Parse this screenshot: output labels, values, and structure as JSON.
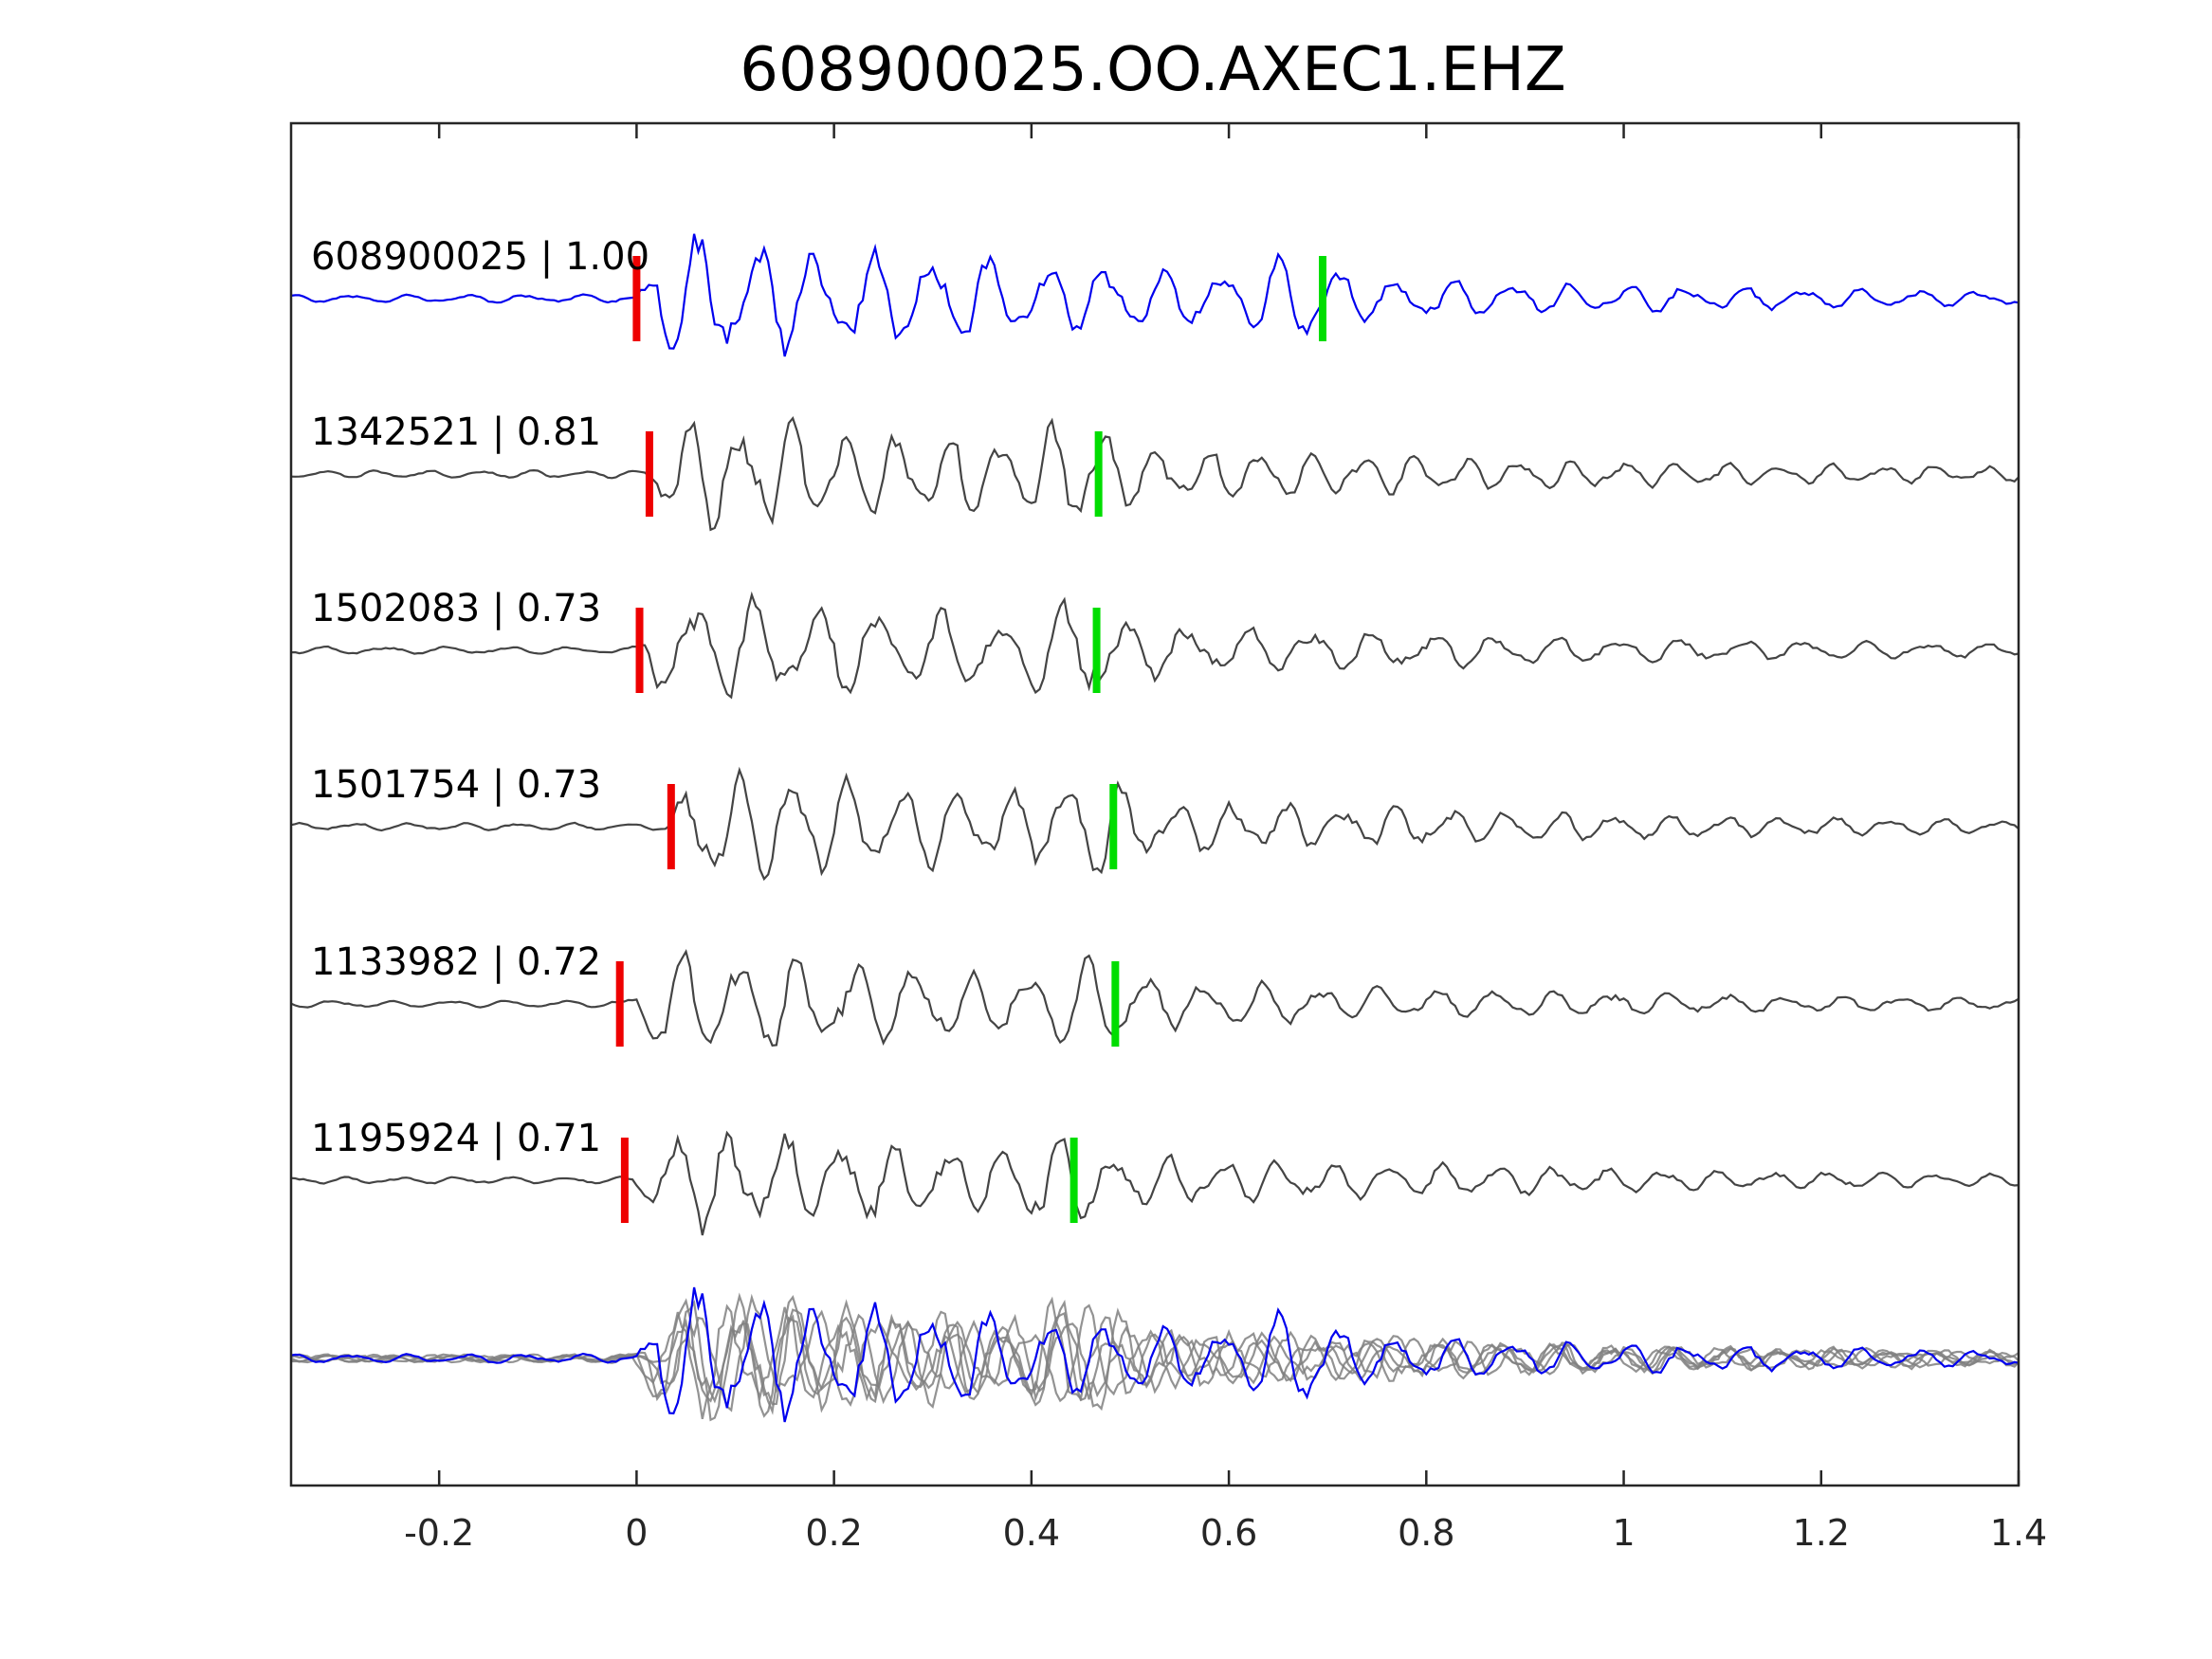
{
  "chart_data": {
    "type": "line",
    "title": "608900025.OO.AXEC1.EHZ",
    "xlabel": "",
    "ylabel": "",
    "xlim": [
      -0.35,
      1.4
    ],
    "x_ticks": [
      -0.2,
      0,
      0.2,
      0.4,
      0.6,
      0.8,
      1,
      1.2,
      1.4
    ],
    "x_tick_labels": [
      "-0.2",
      "0",
      "0.2",
      "0.4",
      "0.6",
      "0.8",
      "1",
      "1.2",
      "1.4"
    ],
    "grid": false,
    "colors": {
      "reference": "#0000ee",
      "match": "#444444",
      "stack": "#808080",
      "p_pick": "#ee0000",
      "s_pick": "#00dd00"
    },
    "series": [
      {
        "name": "608900025",
        "cc": "1.00",
        "label": "608900025 | 1.00",
        "p_pick": 0.0,
        "s_pick": 0.695,
        "onset": 0.0,
        "color": "reference",
        "amp": 1.0,
        "freq": 17,
        "seed": 1
      },
      {
        "name": "1342521",
        "cc": "0.81",
        "label": "1342521 | 0.81",
        "p_pick": 0.013,
        "s_pick": 0.468,
        "onset": 0.01,
        "color": "match",
        "amp": 0.95,
        "freq": 19,
        "seed": 2
      },
      {
        "name": "1502083",
        "cc": "0.73",
        "label": "1502083 | 0.73",
        "p_pick": 0.003,
        "s_pick": 0.466,
        "onset": 0.0,
        "color": "match",
        "amp": 0.9,
        "freq": 16,
        "seed": 3
      },
      {
        "name": "1501754",
        "cc": "0.73",
        "label": "1501754 | 0.73",
        "p_pick": 0.035,
        "s_pick": 0.483,
        "onset": 0.03,
        "color": "match",
        "amp": 0.9,
        "freq": 18,
        "seed": 4
      },
      {
        "name": "1133982",
        "cc": "0.72",
        "label": "1133982 | 0.72",
        "p_pick": -0.017,
        "s_pick": 0.485,
        "onset": -0.01,
        "color": "match",
        "amp": 0.85,
        "freq": 17,
        "seed": 5
      },
      {
        "name": "1195924",
        "cc": "0.71",
        "label": "1195924 | 0.71",
        "p_pick": -0.012,
        "s_pick": 0.443,
        "onset": -0.005,
        "color": "match",
        "amp": 0.85,
        "freq": 18,
        "seed": 6
      }
    ],
    "overlay": "stack of all traces"
  }
}
